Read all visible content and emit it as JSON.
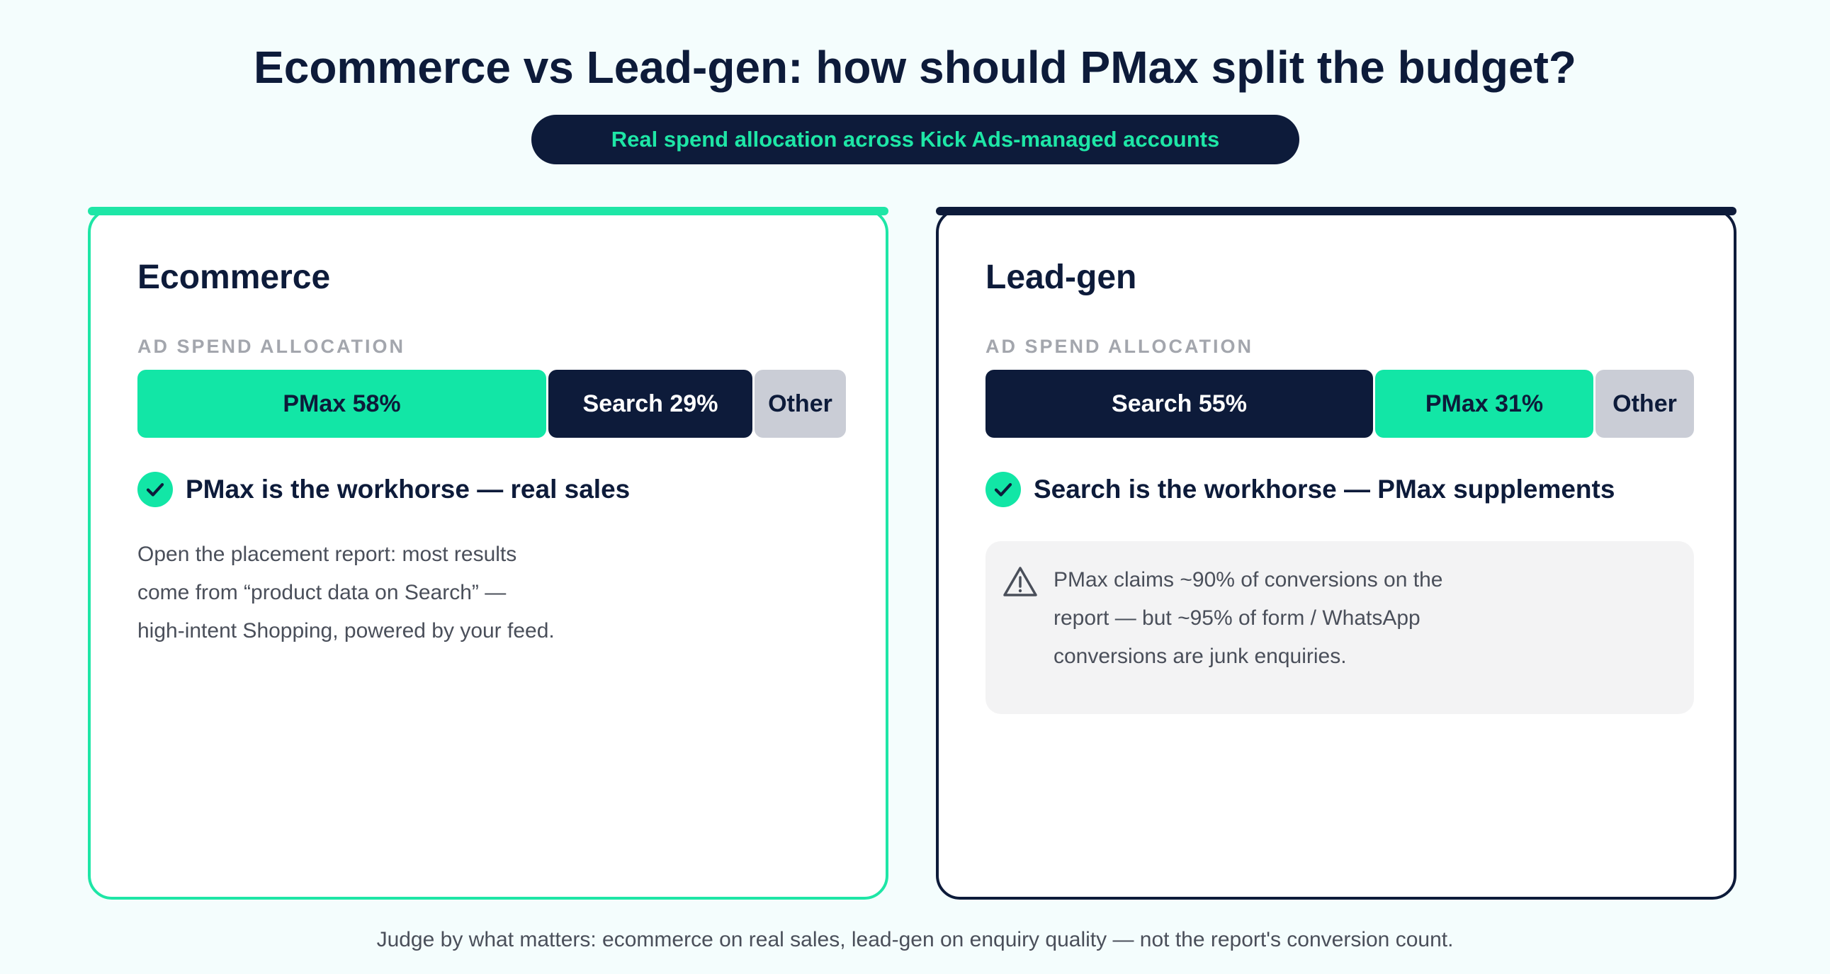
{
  "title": "Ecommerce vs Lead-gen: how should PMax split the budget?",
  "subtitle": "Real spend allocation across Kick Ads-managed accounts",
  "colors": {
    "pmax": "#12e6a6",
    "search": "#0d1b3a",
    "other": "#cacdd6",
    "ecommerce_border": "#1ee6a6",
    "leadgen_border": "#0d1b3a"
  },
  "chart_data": [
    {
      "type": "bar",
      "title": "Ecommerce",
      "subtitle": "AD SPEND ALLOCATION",
      "categories": [
        "PMax",
        "Search",
        "Other"
      ],
      "values": [
        58,
        29,
        13
      ],
      "labels": [
        "PMax 58%",
        "Search 29%",
        "Other"
      ],
      "colors": [
        "#12e6a6",
        "#0d1b3a",
        "#cacdd6"
      ],
      "unit": "%"
    },
    {
      "type": "bar",
      "title": "Lead-gen",
      "subtitle": "AD SPEND ALLOCATION",
      "categories": [
        "Search",
        "PMax",
        "Other"
      ],
      "values": [
        55,
        31,
        14
      ],
      "labels": [
        "Search 55%",
        "PMax 31%",
        "Other"
      ],
      "colors": [
        "#0d1b3a",
        "#12e6a6",
        "#cacdd6"
      ],
      "unit": "%"
    }
  ],
  "ecommerce": {
    "verdict": "PMax is the workhorse — real sales",
    "verdict_icon": "check-circle-icon",
    "body_lines": [
      "Open the placement report: most results",
      "come from “product data on Search” —",
      "high-intent Shopping, powered by your feed."
    ]
  },
  "leadgen": {
    "verdict": "Search is the workhorse — PMax supplements",
    "verdict_icon": "check-circle-icon",
    "note_icon": "warning-triangle-icon",
    "note_lines": [
      "PMax claims ~90% of conversions on the",
      "report — but ~95% of form / WhatsApp",
      "conversions are junk enquiries."
    ]
  },
  "footer": "Judge by what matters: ecommerce on real sales, lead-gen on enquiry quality — not the report's conversion count."
}
